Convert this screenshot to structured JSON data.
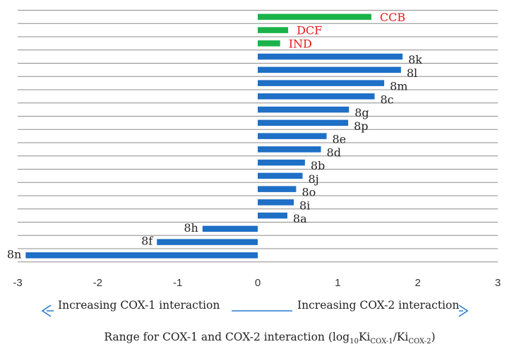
{
  "chart_data": {
    "type": "bar",
    "orientation": "horizontal",
    "categories": [
      "CCB",
      "DCF",
      "IND",
      "8k",
      "8l",
      "8m",
      "8c",
      "8g",
      "8p",
      "8e",
      "8d",
      "8b",
      "8j",
      "8o",
      "8i",
      "8a",
      "8h",
      "8f",
      "8n"
    ],
    "values": [
      1.42,
      0.38,
      0.28,
      1.81,
      1.79,
      1.58,
      1.46,
      1.14,
      1.13,
      0.86,
      0.79,
      0.59,
      0.56,
      0.48,
      0.45,
      0.37,
      -0.69,
      -1.26,
      -2.9
    ],
    "reference": [
      "CCB",
      "DCF",
      "IND"
    ],
    "colors": {
      "reference_bar": "#1ab34a",
      "reference_label": "#e8191e",
      "compound_bar": "#1e6fc6",
      "compound_label": "#222222",
      "axis": "#2a7bd0",
      "grid": "#8c8c8c"
    },
    "xlim": [
      -3,
      3
    ],
    "xticks": [
      "-3",
      "-2",
      "-1",
      "0",
      "1",
      "2",
      "3"
    ],
    "grid": true,
    "annotations": {
      "left_arrow": "Increasing COX-1 interaction",
      "right_arrow": "Increasing COX-2 interaction"
    },
    "xlabel": {
      "main": "Range for COX-1 and COX-2 interaction (log",
      "sub1": "10",
      "ki1": "Ki",
      "sub2": "COX-1",
      "slash": "/Ki",
      "sub3": "COX-2",
      "close": ")"
    }
  }
}
